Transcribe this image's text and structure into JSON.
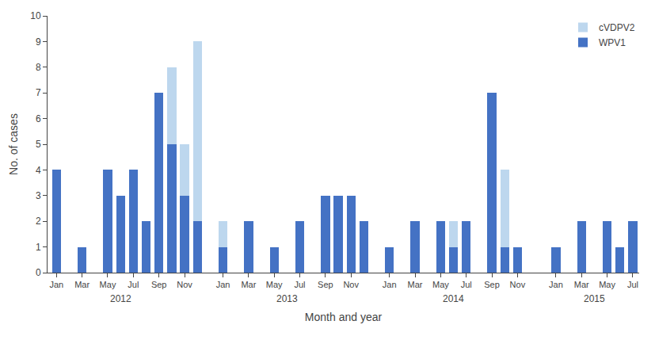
{
  "chart_data": {
    "type": "bar",
    "stacked": true,
    "xlabel": "Month and year",
    "ylabel": "No. of cases",
    "categories": [
      "Jan",
      null,
      "Mar",
      null,
      "May",
      null,
      "Jul",
      null,
      "Sep",
      null,
      "Nov",
      null,
      null,
      "Jan",
      null,
      "Mar",
      null,
      "May",
      null,
      "Jul",
      null,
      "Sep",
      null,
      "Nov",
      null,
      null,
      "Jan",
      null,
      "Mar",
      null,
      "May",
      null,
      "Jul",
      null,
      "Sep",
      null,
      "Nov",
      null,
      null,
      "Jan",
      null,
      "Mar",
      null,
      "May",
      null,
      "Jul"
    ],
    "annotations": [
      "2012",
      "2013",
      "2014",
      "2015"
    ],
    "series": [
      {
        "name": "WPV1",
        "color": "#4472C4",
        "values": [
          4,
          null,
          1,
          null,
          4,
          3,
          4,
          2,
          7,
          5,
          3,
          2,
          null,
          1,
          null,
          2,
          null,
          1,
          null,
          2,
          null,
          3,
          3,
          3,
          2,
          null,
          1,
          null,
          2,
          null,
          2,
          1,
          2,
          null,
          7,
          1,
          1,
          null,
          null,
          1,
          null,
          2,
          null,
          2,
          1,
          2
        ]
      },
      {
        "name": "cVDPV2",
        "color": "#BDD7EE",
        "values": [
          0,
          null,
          0,
          null,
          0,
          0,
          0,
          0,
          0,
          3,
          2,
          7,
          null,
          1,
          null,
          0,
          null,
          0,
          null,
          0,
          null,
          0,
          0,
          0,
          0,
          null,
          0,
          null,
          0,
          null,
          0,
          1,
          0,
          null,
          0,
          3,
          0,
          null,
          null,
          0,
          null,
          0,
          null,
          0,
          0,
          0
        ]
      }
    ],
    "ylim": [
      0,
      10
    ],
    "yticks": [
      0,
      1,
      2,
      3,
      4,
      5,
      6,
      7,
      8,
      9,
      10
    ],
    "grid": false,
    "legend": "upper right"
  }
}
